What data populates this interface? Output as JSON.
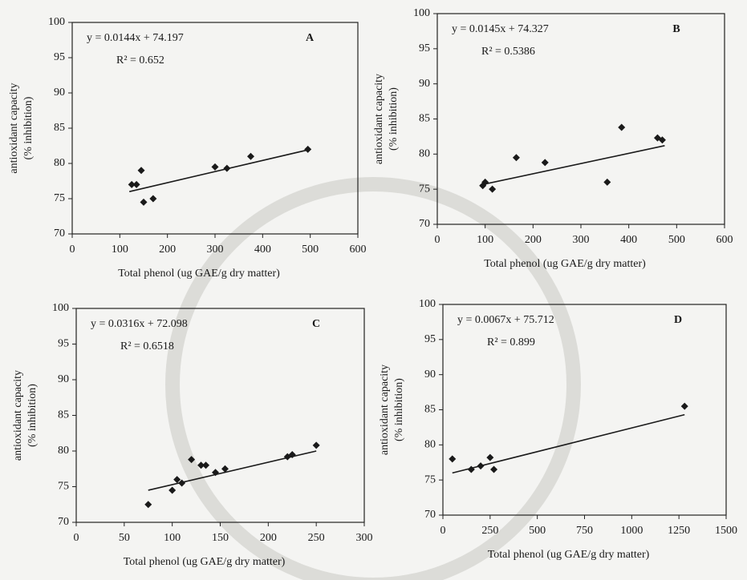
{
  "chart_data": [
    {
      "type": "scatter",
      "label": "A",
      "equation": "y = 0.0144x + 74.197",
      "r2": "R² = 0.652",
      "x_label": "Total phenol (ug GAE/g dry matter)",
      "y_label": [
        "antioxidant capacity",
        "(% inhibition)"
      ],
      "color": "#1a1a1a",
      "x": [
        125,
        135,
        145,
        150,
        170,
        300,
        325,
        375,
        495
      ],
      "values": [
        77,
        77,
        79,
        74.5,
        75,
        79.5,
        79.3,
        81,
        82
      ],
      "trend": {
        "x": [
          120,
          500
        ],
        "values": [
          76,
          82
        ]
      },
      "xlim": [
        0,
        600
      ],
      "xticks": [
        0,
        100,
        200,
        300,
        400,
        500,
        600
      ],
      "ylim": [
        70,
        100
      ],
      "yticks": [
        70,
        75,
        80,
        85,
        90,
        95,
        100
      ]
    },
    {
      "type": "scatter",
      "label": "B",
      "equation": "y = 0.0145x + 74.327",
      "r2": "R² = 0.5386",
      "x_label": "Total phenol (ug GAE/g dry matter)",
      "y_label": [
        "antioxidant capacity",
        "(% inhibition)"
      ],
      "color": "#1a1a1a",
      "x": [
        95,
        100,
        115,
        165,
        225,
        355,
        385,
        460,
        470
      ],
      "values": [
        75.5,
        76,
        75,
        79.5,
        78.8,
        76,
        83.8,
        82.3,
        82
      ],
      "trend": {
        "x": [
          90,
          475
        ],
        "values": [
          75.6,
          81.2
        ]
      },
      "xlim": [
        0,
        600
      ],
      "xticks": [
        0,
        100,
        200,
        300,
        400,
        500,
        600
      ],
      "ylim": [
        70,
        100
      ],
      "yticks": [
        70,
        75,
        80,
        85,
        90,
        95,
        100
      ]
    },
    {
      "type": "scatter",
      "label": "C",
      "equation": "y = 0.0316x + 72.098",
      "r2": "R² = 0.6518",
      "x_label": "Total phenol (ug GAE/g dry matter)",
      "y_label": [
        "antioxidant capacity",
        "(% inhibition)"
      ],
      "color": "#1a1a1a",
      "x": [
        75,
        100,
        105,
        110,
        120,
        130,
        135,
        145,
        155,
        220,
        225,
        250
      ],
      "values": [
        72.5,
        74.5,
        76,
        75.5,
        78.8,
        78,
        78,
        77,
        77.5,
        79.2,
        79.5,
        80.8
      ],
      "trend": {
        "x": [
          75,
          250
        ],
        "values": [
          74.5,
          80
        ]
      },
      "xlim": [
        0,
        300
      ],
      "xticks": [
        0,
        50,
        100,
        150,
        200,
        250,
        300
      ],
      "ylim": [
        70,
        100
      ],
      "yticks": [
        70,
        75,
        80,
        85,
        90,
        95,
        100
      ]
    },
    {
      "type": "scatter",
      "label": "D",
      "equation": "y = 0.0067x + 75.712",
      "r2": "R² = 0.899",
      "x_label": "Total phenol (ug GAE/g dry matter)",
      "y_label": [
        "antioxidant capacity",
        "(% inhibition)"
      ],
      "color": "#1a1a1a",
      "x": [
        50,
        150,
        200,
        250,
        270,
        1280
      ],
      "values": [
        78,
        76.5,
        77,
        78.2,
        76.5,
        85.5
      ],
      "trend": {
        "x": [
          50,
          1280
        ],
        "values": [
          76,
          84.3
        ]
      },
      "xlim": [
        0,
        1500
      ],
      "xticks": [
        0,
        250,
        500,
        750,
        1000,
        1250,
        1500
      ],
      "ylim": [
        70,
        100
      ],
      "yticks": [
        70,
        75,
        80,
        85,
        90,
        95,
        100
      ]
    }
  ]
}
